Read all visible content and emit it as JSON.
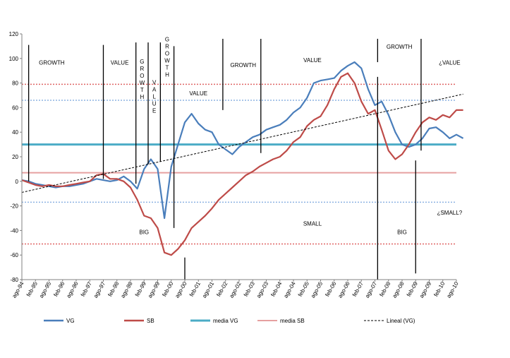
{
  "chart_data": {
    "type": "line",
    "ylim": [
      -80,
      120
    ],
    "y_ticks": [
      -80,
      -60,
      -40,
      -20,
      0,
      20,
      40,
      60,
      80,
      100,
      120
    ],
    "x_range": [
      0,
      48
    ],
    "x_tick_labels": [
      "ago-94",
      "feb-95",
      "ago-95",
      "feb-96",
      "ago-96",
      "feb-97",
      "ago-97",
      "feb-98",
      "ago-98",
      "feb-99",
      "ago-99",
      "feb-00",
      "ago-00",
      "feb-01",
      "ago-01",
      "feb-02",
      "ago-02",
      "feb-03",
      "ago-03",
      "feb-04",
      "ago-04",
      "feb-05",
      "ago-05",
      "feb-06",
      "ago-06",
      "feb-07",
      "ago-07",
      "feb-08",
      "ago-08",
      "feb-09",
      "ago-09",
      "feb-10",
      "ago-10"
    ],
    "grid": false,
    "legend_position": "bottom",
    "series": [
      {
        "name": "VG",
        "color": "#4a7ebb",
        "x": [
          0,
          0.5,
          1,
          1.5,
          2,
          2.5,
          3,
          3.5,
          4,
          4.5,
          5,
          5.5,
          6,
          6.5,
          7,
          7.5,
          8,
          8.5,
          9,
          9.5,
          10,
          10.5,
          11,
          11.5,
          12,
          12.5,
          13,
          13.5,
          14,
          14.5,
          15,
          15.5,
          16,
          16.5,
          17,
          17.5,
          18,
          18.5,
          19,
          19.5,
          20,
          20.5,
          21,
          21.5,
          22,
          22.5,
          23,
          23.5,
          24,
          24.5,
          25,
          25.5,
          26,
          26.5,
          27,
          27.5,
          28,
          28.5,
          29,
          29.5,
          30,
          30.5,
          31,
          31.5,
          32,
          32.5
        ],
        "values": [
          1,
          0,
          -2,
          -3,
          -4,
          -5,
          -4,
          -4,
          -3,
          -2,
          0,
          2,
          1,
          0,
          1,
          4,
          0,
          -6,
          10,
          18,
          10,
          -30,
          12,
          30,
          48,
          55,
          47,
          42,
          40,
          30,
          26,
          22,
          28,
          32,
          36,
          38,
          42,
          44,
          46,
          50,
          56,
          60,
          68,
          80,
          82,
          83,
          84,
          90,
          94,
          97,
          92,
          75,
          62,
          65,
          54,
          40,
          30,
          28,
          30,
          35,
          43,
          44,
          40,
          35,
          38,
          35
        ]
      },
      {
        "name": "SB",
        "color": "#be4b48",
        "x": [
          0,
          0.5,
          1,
          1.5,
          2,
          2.5,
          3,
          3.5,
          4,
          4.5,
          5,
          5.5,
          6,
          6.5,
          7,
          7.5,
          8,
          8.5,
          9,
          9.5,
          10,
          10.5,
          11,
          11.5,
          12,
          12.5,
          13,
          13.5,
          14,
          14.5,
          15,
          15.5,
          16,
          16.5,
          17,
          17.5,
          18,
          18.5,
          19,
          19.5,
          20,
          20.5,
          21,
          21.5,
          22,
          22.5,
          23,
          23.5,
          24,
          24.5,
          25,
          25.5,
          26,
          26.5,
          27,
          27.5,
          28,
          28.5,
          29,
          29.5,
          30,
          30.5,
          31,
          31.5,
          32,
          32.5
        ],
        "values": [
          1,
          -1,
          -3,
          -4,
          -3,
          -4,
          -4,
          -3,
          -2,
          -1,
          0,
          5,
          6,
          2,
          2,
          0,
          -5,
          -15,
          -28,
          -30,
          -38,
          -58,
          -60,
          -55,
          -48,
          -38,
          -33,
          -28,
          -22,
          -15,
          -10,
          -5,
          0,
          5,
          8,
          12,
          15,
          18,
          20,
          25,
          32,
          36,
          45,
          50,
          53,
          62,
          75,
          85,
          88,
          80,
          65,
          55,
          58,
          42,
          25,
          18,
          22,
          30,
          40,
          48,
          52,
          50,
          54,
          52,
          58,
          58
        ]
      }
    ],
    "reference_lines": [
      {
        "name": "media VG",
        "y": 30,
        "color": "#4bacc6"
      },
      {
        "name": "media SB",
        "y": 7,
        "color": "#e6a0a0"
      }
    ],
    "band_lines": [
      {
        "y": 79,
        "color": "#e06666"
      },
      {
        "y": 66,
        "color": "#8db3e2"
      },
      {
        "y": -17,
        "color": "#8db3e2"
      },
      {
        "y": -51,
        "color": "#e06666"
      }
    ],
    "trendline": {
      "name": "Lineal (VG)",
      "from": [
        0,
        -9
      ],
      "to": [
        32.5,
        71
      ],
      "color": "#000000"
    },
    "vertical_markers": [
      {
        "x": 0.5,
        "top": 111,
        "bottom": 0
      },
      {
        "x": 6.0,
        "top": 111,
        "bottom": 2
      },
      {
        "x": 8.4,
        "top": 113,
        "bottom": -2
      },
      {
        "x": 9.3,
        "top": 113,
        "bottom": 14
      },
      {
        "x": 10.2,
        "top": 113,
        "bottom": 16
      },
      {
        "x": 11.2,
        "top": 110,
        "bottom": -38
      },
      {
        "x": 12.0,
        "top": -62,
        "bottom": -80
      },
      {
        "x": 14.8,
        "top": 116,
        "bottom": 58
      },
      {
        "x": 17.6,
        "top": 116,
        "bottom": 23
      },
      {
        "x": 26.2,
        "top": 116,
        "bottom": 97
      },
      {
        "x": 26.2,
        "top": 85,
        "bottom": -80
      },
      {
        "x": 29.0,
        "top": 17,
        "bottom": -75
      },
      {
        "x": 29.4,
        "top": 116,
        "bottom": 25
      }
    ],
    "annotations": [
      {
        "text": "GROWTH",
        "x": 2.2,
        "y": 95
      },
      {
        "text": "VALUE",
        "x": 7.2,
        "y": 95
      },
      {
        "text": "GROWTH",
        "x": 8.85,
        "y": 96,
        "vertical": true
      },
      {
        "text": "VALUE",
        "x": 9.75,
        "y": 79,
        "vertical": true
      },
      {
        "text": "GROWTH",
        "x": 10.7,
        "y": 114,
        "vertical": true
      },
      {
        "text": "VALUE",
        "x": 13.0,
        "y": 70
      },
      {
        "text": "GROWTH",
        "x": 16.3,
        "y": 93
      },
      {
        "text": "VALUE",
        "x": 21.4,
        "y": 97
      },
      {
        "text": "GROWTH",
        "x": 27.8,
        "y": 108
      },
      {
        "text": "¿VALUE",
        "x": 31.5,
        "y": 95
      },
      {
        "text": "BIG",
        "x": 9.0,
        "y": -43
      },
      {
        "text": "SMALL",
        "x": 21.4,
        "y": -36
      },
      {
        "text": "BIG",
        "x": 28.0,
        "y": -43
      },
      {
        "text": "¿SMALL?",
        "x": 31.5,
        "y": -27
      }
    ],
    "legend": [
      "VG",
      "SB",
      "media VG",
      "media SB",
      "Lineal (VG)"
    ]
  }
}
